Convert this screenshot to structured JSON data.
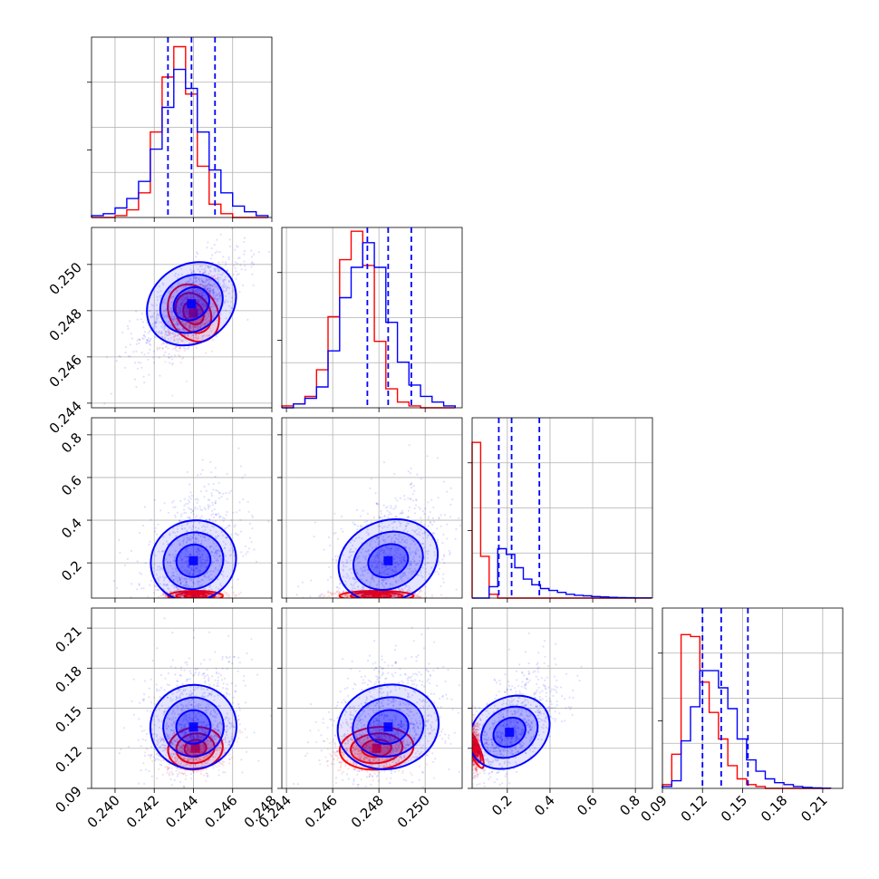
{
  "chart_data": {
    "type": "corner",
    "colors": {
      "series_a": "#0000ff",
      "series_b": "#ff0000"
    },
    "grid": true,
    "parameters": [
      {
        "range": [
          0.2388,
          0.248
        ],
        "ticks": [
          0.24,
          0.242,
          0.244,
          0.246,
          0.248
        ],
        "tick_labels": [
          "0.240",
          "0.242",
          "0.244",
          "0.246",
          "0.248"
        ]
      },
      {
        "range": [
          0.2438,
          0.2516
        ],
        "ticks": [
          0.244,
          0.246,
          0.248,
          0.25
        ],
        "tick_labels": [
          "0.244",
          "0.246",
          "0.248",
          "0.250"
        ]
      },
      {
        "range": [
          0.035,
          0.88
        ],
        "ticks": [
          0.2,
          0.4,
          0.6,
          0.8
        ],
        "tick_labels": [
          "0.2",
          "0.4",
          "0.6",
          "0.8"
        ]
      },
      {
        "range": [
          0.09,
          0.225
        ],
        "ticks": [
          0.09,
          0.12,
          0.15,
          0.18,
          0.21
        ],
        "tick_labels": [
          "0.09",
          "0.12",
          "0.15",
          "0.18",
          "0.21"
        ]
      }
    ],
    "diagonal": [
      {
        "bins": [
          0.2388,
          0.2394,
          0.24,
          0.2406,
          0.2412,
          0.2418,
          0.2424,
          0.243,
          0.2436,
          0.2442,
          0.2448,
          0.2454,
          0.246,
          0.2466,
          0.2472,
          0.2478
        ],
        "series_a": [
          0.01,
          0.02,
          0.05,
          0.1,
          0.19,
          0.36,
          0.58,
          0.78,
          0.68,
          0.45,
          0.25,
          0.13,
          0.06,
          0.03,
          0.01
        ],
        "series_b": [
          0.0,
          0.0,
          0.01,
          0.04,
          0.13,
          0.45,
          0.74,
          0.9,
          0.65,
          0.27,
          0.07,
          0.02,
          0.0,
          0.0,
          0.0
        ],
        "quantile_lines": [
          0.2427,
          0.2439,
          0.2451
        ]
      },
      {
        "bins": [
          0.2438,
          0.2443,
          0.2448,
          0.2453,
          0.2458,
          0.2463,
          0.2468,
          0.2473,
          0.2478,
          0.2483,
          0.2488,
          0.2493,
          0.2498,
          0.2503,
          0.2508,
          0.2513
        ],
        "series_a": [
          0.0,
          0.02,
          0.05,
          0.11,
          0.3,
          0.58,
          0.74,
          0.87,
          0.74,
          0.45,
          0.24,
          0.12,
          0.06,
          0.03,
          0.01
        ],
        "series_b": [
          0.01,
          0.02,
          0.06,
          0.2,
          0.48,
          0.78,
          0.93,
          0.75,
          0.35,
          0.1,
          0.03,
          0.01,
          0.0,
          0.0,
          0.0
        ],
        "quantile_lines": [
          0.2475,
          0.2484,
          0.2494
        ]
      },
      {
        "bins": [
          0.035,
          0.075,
          0.115,
          0.155,
          0.195,
          0.235,
          0.275,
          0.315,
          0.355,
          0.395,
          0.435,
          0.475,
          0.515,
          0.555,
          0.595,
          0.635,
          0.675,
          0.715,
          0.755,
          0.795,
          0.835,
          0.875
        ],
        "series_a": [
          0.0,
          0.0,
          0.06,
          0.26,
          0.23,
          0.16,
          0.1,
          0.07,
          0.05,
          0.04,
          0.03,
          0.02,
          0.015,
          0.012,
          0.008,
          0.006,
          0.004,
          0.003,
          0.002,
          0.001,
          0.001
        ],
        "series_b": [
          0.82,
          0.22,
          0.02,
          0.0,
          0.0,
          0.0,
          0.0,
          0.0,
          0.0,
          0.0,
          0.0,
          0.0,
          0.0,
          0.0,
          0.0,
          0.0,
          0.0,
          0.0,
          0.0,
          0.0,
          0.0
        ],
        "quantile_lines": [
          0.16,
          0.22,
          0.35
        ]
      },
      {
        "bins": [
          0.09,
          0.097,
          0.104,
          0.111,
          0.118,
          0.125,
          0.132,
          0.139,
          0.146,
          0.153,
          0.16,
          0.167,
          0.174,
          0.181,
          0.188,
          0.195,
          0.202,
          0.209,
          0.216
        ],
        "series_a": [
          0.01,
          0.04,
          0.25,
          0.43,
          0.62,
          0.62,
          0.53,
          0.42,
          0.26,
          0.15,
          0.09,
          0.05,
          0.03,
          0.02,
          0.01,
          0.005,
          0.003,
          0.001
        ],
        "series_b": [
          0.02,
          0.18,
          0.81,
          0.8,
          0.56,
          0.4,
          0.26,
          0.12,
          0.05,
          0.02,
          0.01,
          0.0,
          0.0,
          0.0,
          0.0,
          0.0,
          0.0,
          0.0
        ],
        "quantile_lines": [
          0.12,
          0.134,
          0.154
        ]
      }
    ],
    "pairs": [
      {
        "x": 0,
        "y": 1,
        "series_a": {
          "mean": [
            0.2439,
            0.2483
          ],
          "sd": [
            0.0012,
            0.001
          ],
          "corr": 0.7
        },
        "series_b": {
          "mean": [
            0.244,
            0.2479
          ],
          "sd": [
            0.0006,
            0.0007
          ],
          "corr": 0.45
        }
      },
      {
        "x": 0,
        "y": 2,
        "series_a": {
          "mean": [
            0.244,
            0.21
          ],
          "sd": [
            0.0011,
            0.1
          ],
          "corr": 0.45
        },
        "series_b": {
          "mean": [
            0.2441,
            0.045
          ],
          "sd": [
            0.0007,
            0.012
          ],
          "corr": 0.0
        }
      },
      {
        "x": 1,
        "y": 2,
        "series_a": {
          "mean": [
            0.2484,
            0.21
          ],
          "sd": [
            0.0011,
            0.1
          ],
          "corr": 0.45
        },
        "series_b": {
          "mean": [
            0.2479,
            0.045
          ],
          "sd": [
            0.0008,
            0.012
          ],
          "corr": 0.0
        }
      },
      {
        "x": 0,
        "y": 3,
        "series_a": {
          "mean": [
            0.244,
            0.136
          ],
          "sd": [
            0.0011,
            0.016
          ],
          "corr": 0.25
        },
        "series_b": {
          "mean": [
            0.2441,
            0.12
          ],
          "sd": [
            0.0007,
            0.008
          ],
          "corr": 0.2
        }
      },
      {
        "x": 1,
        "y": 3,
        "series_a": {
          "mean": [
            0.2484,
            0.136
          ],
          "sd": [
            0.0011,
            0.016
          ],
          "corr": 0.25
        },
        "series_b": {
          "mean": [
            0.2479,
            0.12
          ],
          "sd": [
            0.0008,
            0.008
          ],
          "corr": 0.15
        }
      },
      {
        "x": 2,
        "y": 3,
        "series_a": {
          "mean": [
            0.21,
            0.132
          ],
          "sd": [
            0.1,
            0.015
          ],
          "corr": 0.7
        },
        "series_b": {
          "mean": [
            0.045,
            0.12
          ],
          "sd": [
            0.012,
            0.008
          ],
          "corr": 0.1
        }
      }
    ]
  }
}
